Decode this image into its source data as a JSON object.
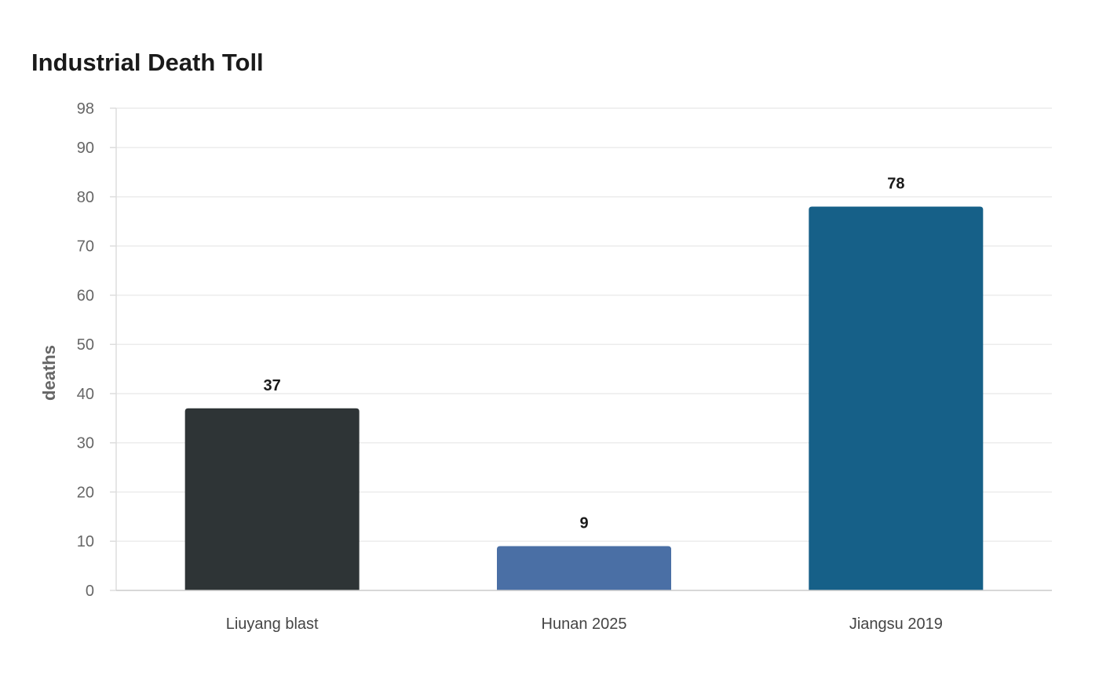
{
  "chart_data": {
    "type": "bar",
    "title": "Industrial Death Toll",
    "xlabel": "",
    "ylabel": "deaths",
    "categories": [
      "Liuyang blast",
      "Hunan 2025",
      "Jiangsu 2019"
    ],
    "values": [
      37,
      9,
      78
    ],
    "colors": [
      "#2e3436",
      "#4a6fa5",
      "#166088"
    ],
    "ylim": [
      0,
      98
    ],
    "yticks": [
      0,
      10,
      20,
      30,
      40,
      50,
      60,
      70,
      80,
      90,
      98
    ],
    "grid": true,
    "legend": "none"
  }
}
